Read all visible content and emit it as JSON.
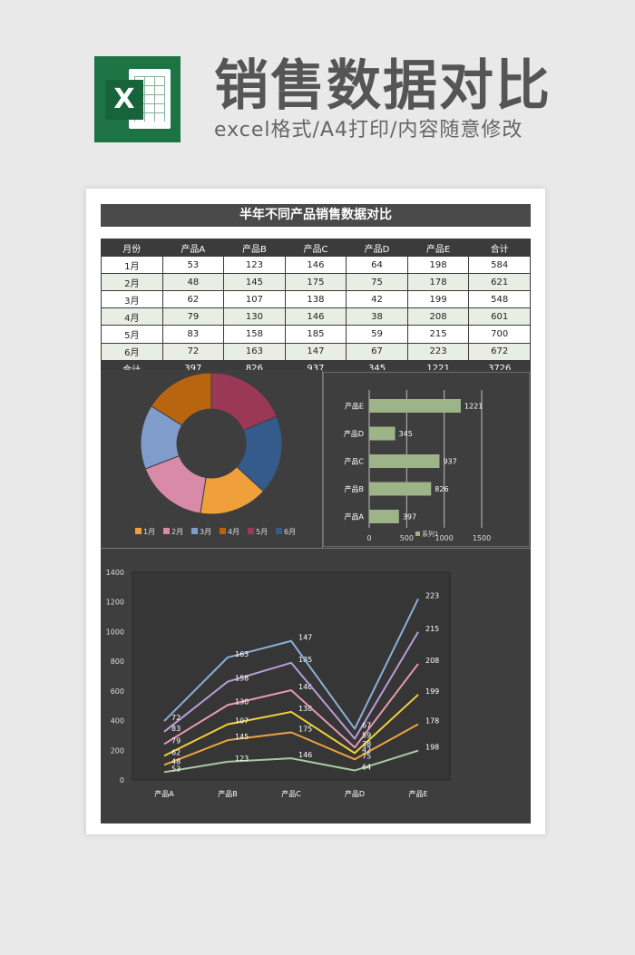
{
  "header": {
    "title": "销售数据对比",
    "subtitle": "excel格式/A4打印/内容随意修改",
    "logo_letter": "X"
  },
  "sheet": {
    "title": "半年不同产品销售数据对比",
    "columns": [
      "月份",
      "产品A",
      "产品B",
      "产品C",
      "产品D",
      "产品E",
      "合计"
    ],
    "rows": [
      [
        "1月",
        "53",
        "123",
        "146",
        "64",
        "198",
        "584"
      ],
      [
        "2月",
        "48",
        "145",
        "175",
        "75",
        "178",
        "621"
      ],
      [
        "3月",
        "62",
        "107",
        "138",
        "42",
        "199",
        "548"
      ],
      [
        "4月",
        "79",
        "130",
        "146",
        "38",
        "208",
        "601"
      ],
      [
        "5月",
        "83",
        "158",
        "185",
        "59",
        "215",
        "700"
      ],
      [
        "6月",
        "72",
        "163",
        "147",
        "67",
        "223",
        "672"
      ]
    ],
    "total": [
      "合计",
      "397",
      "826",
      "937",
      "345",
      "1221",
      "3726"
    ]
  },
  "chart_data": [
    {
      "type": "pie",
      "variant": "donut",
      "categories": [
        "1月",
        "2月",
        "3月",
        "4月",
        "5月",
        "6月"
      ],
      "values": [
        584,
        621,
        548,
        601,
        700,
        672
      ],
      "colors": [
        "#f0a03a",
        "#d98aa8",
        "#7f9ccb",
        "#b9650f",
        "#9b3858",
        "#355a8c"
      ],
      "legend": "bottom"
    },
    {
      "type": "bar",
      "orientation": "horizontal",
      "categories": [
        "产品A",
        "产品B",
        "产品C",
        "产品D",
        "产品E"
      ],
      "values": [
        397,
        826,
        937,
        345,
        1221
      ],
      "series_name": "系列1",
      "xlim": [
        0,
        1500
      ],
      "xticks": [
        0,
        500,
        1000,
        1500
      ],
      "color": "#9db388",
      "grid": true
    },
    {
      "type": "line",
      "stacked": true,
      "categories": [
        "产品A",
        "产品B",
        "产品C",
        "产品D",
        "产品E"
      ],
      "ylim": [
        0,
        1400
      ],
      "yticks": [
        0,
        200,
        400,
        600,
        800,
        1000,
        1200,
        1400
      ],
      "series": [
        {
          "values": [
            53,
            123,
            146,
            64,
            198
          ],
          "color": "#a9c9a0"
        },
        {
          "values": [
            48,
            145,
            175,
            75,
            178
          ],
          "color": "#f0a340"
        },
        {
          "values": [
            62,
            107,
            138,
            42,
            199
          ],
          "color": "#f2d23a"
        },
        {
          "values": [
            79,
            130,
            146,
            38,
            208
          ],
          "color": "#e99ab2"
        },
        {
          "values": [
            83,
            158,
            185,
            59,
            215
          ],
          "color": "#b89ed6"
        },
        {
          "values": [
            72,
            163,
            147,
            67,
            223
          ],
          "color": "#8ab0d8"
        }
      ]
    }
  ]
}
